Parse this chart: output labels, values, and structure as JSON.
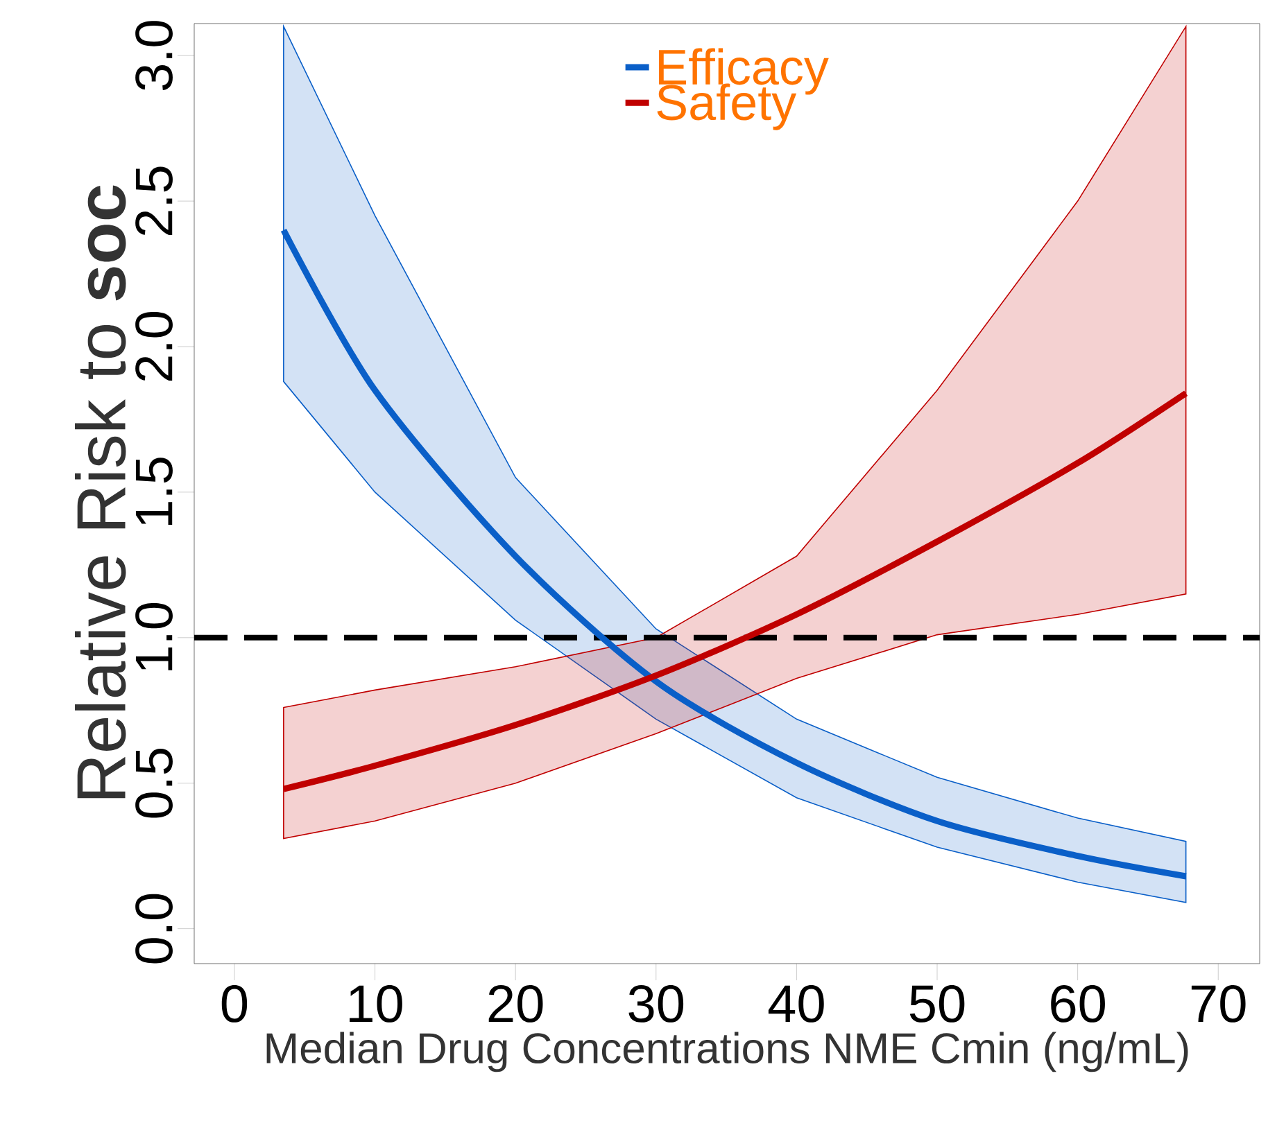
{
  "chart_data": {
    "type": "line",
    "xlabel": "Median Drug Concentrations NME  Cmin (ng/mL)",
    "ylabel": "Relative Risk to **soc**",
    "x": [
      3.5,
      10,
      20,
      30,
      40,
      50,
      60,
      67.7
    ],
    "series": [
      {
        "name": "Efficacy",
        "color": "#0a5fc8",
        "values": [
          2.4,
          1.85,
          1.28,
          0.85,
          0.57,
          0.37,
          0.25,
          0.18
        ],
        "upper": [
          3.1,
          2.45,
          1.55,
          1.03,
          0.72,
          0.52,
          0.38,
          0.3
        ],
        "lower": [
          1.88,
          1.5,
          1.06,
          0.72,
          0.45,
          0.28,
          0.16,
          0.09
        ]
      },
      {
        "name": "Safety",
        "color": "#c00000",
        "values": [
          0.48,
          0.56,
          0.7,
          0.87,
          1.08,
          1.33,
          1.6,
          1.84
        ],
        "upper": [
          0.76,
          0.82,
          0.9,
          1.0,
          1.28,
          1.85,
          2.5,
          3.1
        ],
        "lower": [
          0.31,
          0.37,
          0.5,
          0.67,
          0.86,
          1.01,
          1.08,
          1.15
        ]
      }
    ],
    "xlim": [
      -2.86,
      72.95
    ],
    "ylim": [
      -0.12,
      3.11
    ],
    "xticks": [
      0,
      10,
      20,
      30,
      40,
      50,
      60,
      70
    ],
    "yticks": [
      {
        "value": 0,
        "label": "0.0"
      },
      {
        "value": 0.5,
        "label": "0.5"
      },
      {
        "value": 1,
        "label": "1.0"
      },
      {
        "value": 1.5,
        "label": "1.5"
      },
      {
        "value": 2,
        "label": "2.0"
      },
      {
        "value": 2.5,
        "label": "2.5"
      },
      {
        "value": 3,
        "label": "3.0"
      }
    ],
    "ref_lines": [
      {
        "axis": "y",
        "value": 1,
        "color": "#000000",
        "line_style": "dashed"
      }
    ],
    "legend": "top",
    "grid": false,
    "marker": "none",
    "line_style": "solid"
  }
}
